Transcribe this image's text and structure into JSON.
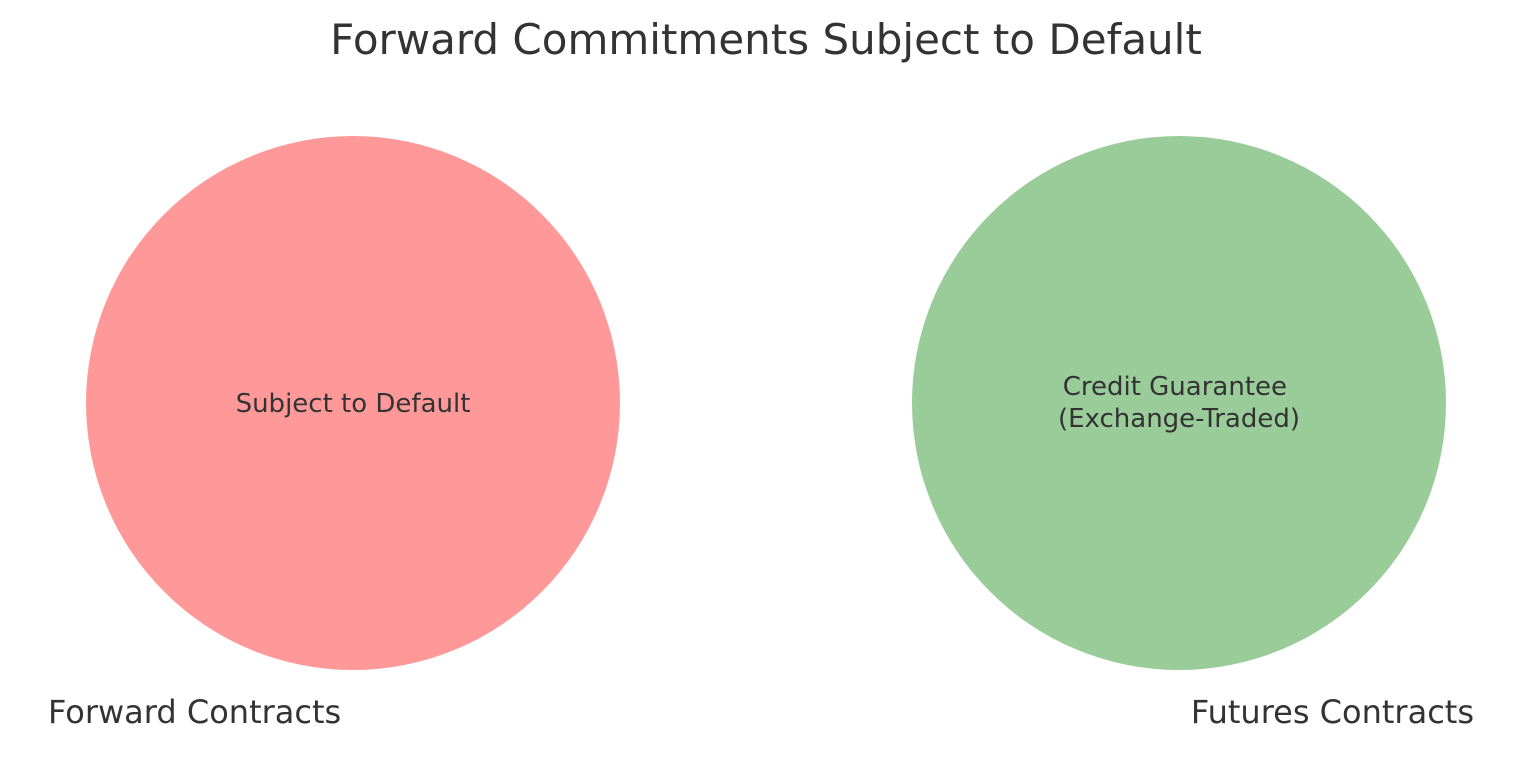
{
  "title": "Forward Commitments Subject to Default",
  "sets": [
    {
      "name": "Forward Contracts",
      "inner_label_lines": [
        "Subject to Default"
      ],
      "color": "#ff9999"
    },
    {
      "name": "Futures Contracts",
      "inner_label_lines": [
        "Credit Guarantee",
        "(Exchange-Traded)"
      ],
      "color": "#99cc99"
    }
  ]
}
